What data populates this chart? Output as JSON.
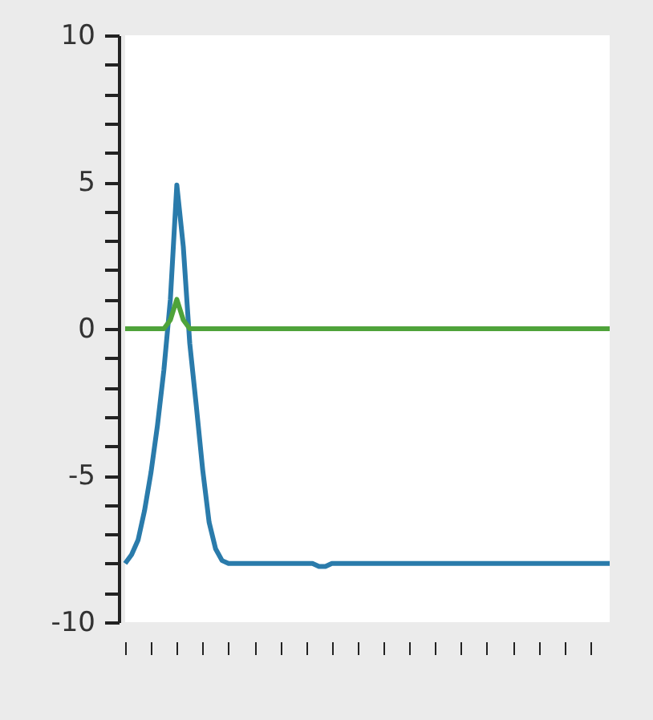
{
  "chart_data": {
    "type": "line",
    "categories": [
      null,
      null,
      null,
      null,
      null,
      null,
      null,
      null,
      null,
      null,
      null,
      null,
      null,
      null,
      null,
      null,
      null,
      null,
      null,
      null,
      null,
      null,
      null,
      null,
      null,
      null,
      null,
      null,
      null,
      null,
      null,
      null,
      null,
      null,
      null,
      null,
      null,
      null,
      null,
      null,
      null,
      null,
      null,
      null,
      null,
      null,
      null,
      null,
      null,
      null,
      null,
      null,
      null,
      null,
      null,
      null,
      null,
      null,
      null,
      null,
      null,
      null,
      null,
      null,
      null,
      null,
      null,
      null,
      null,
      null,
      null,
      null,
      null,
      null,
      null,
      null
    ],
    "series": [
      {
        "color": "#2a7bab",
        "values": [
          -8.0,
          -7.7,
          -7.2,
          -6.2,
          -4.9,
          -3.3,
          -1.4,
          1.0,
          4.9,
          2.8,
          -0.5,
          -2.6,
          -4.8,
          -6.6,
          -7.5,
          -7.9,
          -8.0,
          -8.0,
          -8.0,
          -8.0,
          -8.0,
          -8.0,
          -8.0,
          -8.0,
          -8.0,
          -8.0,
          -8.0,
          -8.0,
          -8.0,
          -8.0,
          -8.1,
          -8.1,
          -8.0,
          -8.0,
          -8.0,
          -8.0,
          -8.0,
          -8.0,
          -8.0,
          -8.0,
          -8.0,
          -8.0,
          -8.0,
          -8.0,
          -8.0,
          -8.0,
          -8.0,
          -8.0,
          -8.0,
          -8.0,
          -8.0,
          -8.0,
          -8.0,
          -8.0,
          -8.0,
          -8.0,
          -8.0,
          -8.0,
          -8.0,
          -8.0,
          -8.0,
          -8.0,
          -8.0,
          -8.0,
          -8.0,
          -8.0,
          -8.0,
          -8.0,
          -8.0,
          -8.0,
          -8.0,
          -8.0,
          -8.0,
          -8.0,
          -8.0,
          -8.0
        ]
      },
      {
        "color": "#4fa33a",
        "values": [
          0,
          0,
          0,
          0,
          0,
          0,
          0,
          0.3,
          1.0,
          0.3,
          0,
          0,
          0,
          0,
          0,
          0,
          0,
          0,
          0,
          0,
          0,
          0,
          0,
          0,
          0,
          0,
          0,
          0,
          0,
          0,
          0,
          0,
          0,
          0,
          0,
          0,
          0,
          0,
          0,
          0,
          0,
          0,
          0,
          0,
          0,
          0,
          0,
          0,
          0,
          0,
          0,
          0,
          0,
          0,
          0,
          0,
          0,
          0,
          0,
          0,
          0,
          0,
          0,
          0,
          0,
          0,
          0,
          0,
          0,
          0,
          0,
          0,
          0,
          0,
          0,
          0
        ]
      }
    ],
    "ylim": [
      -10,
      10
    ],
    "yticks": [
      -10,
      {
        "value": -9,
        "label": null
      },
      {
        "value": -8,
        "label": null
      },
      {
        "value": -7,
        "label": null
      },
      {
        "value": -6,
        "label": null
      },
      -5,
      {
        "value": -4,
        "label": null
      },
      {
        "value": -3,
        "label": null
      },
      {
        "value": -2,
        "label": null
      },
      {
        "value": -1,
        "label": null
      },
      0,
      {
        "value": 1,
        "label": null
      },
      {
        "value": 2,
        "label": null
      },
      {
        "value": 3,
        "label": null
      },
      {
        "value": 4,
        "label": null
      },
      5,
      {
        "value": 6,
        "label": null
      },
      {
        "value": 7,
        "label": null
      },
      {
        "value": 8,
        "label": null
      },
      {
        "value": 9,
        "label": null
      },
      10
    ],
    "tick_labels": "y",
    "grid": false,
    "marker": "none",
    "line_style": "solid"
  }
}
